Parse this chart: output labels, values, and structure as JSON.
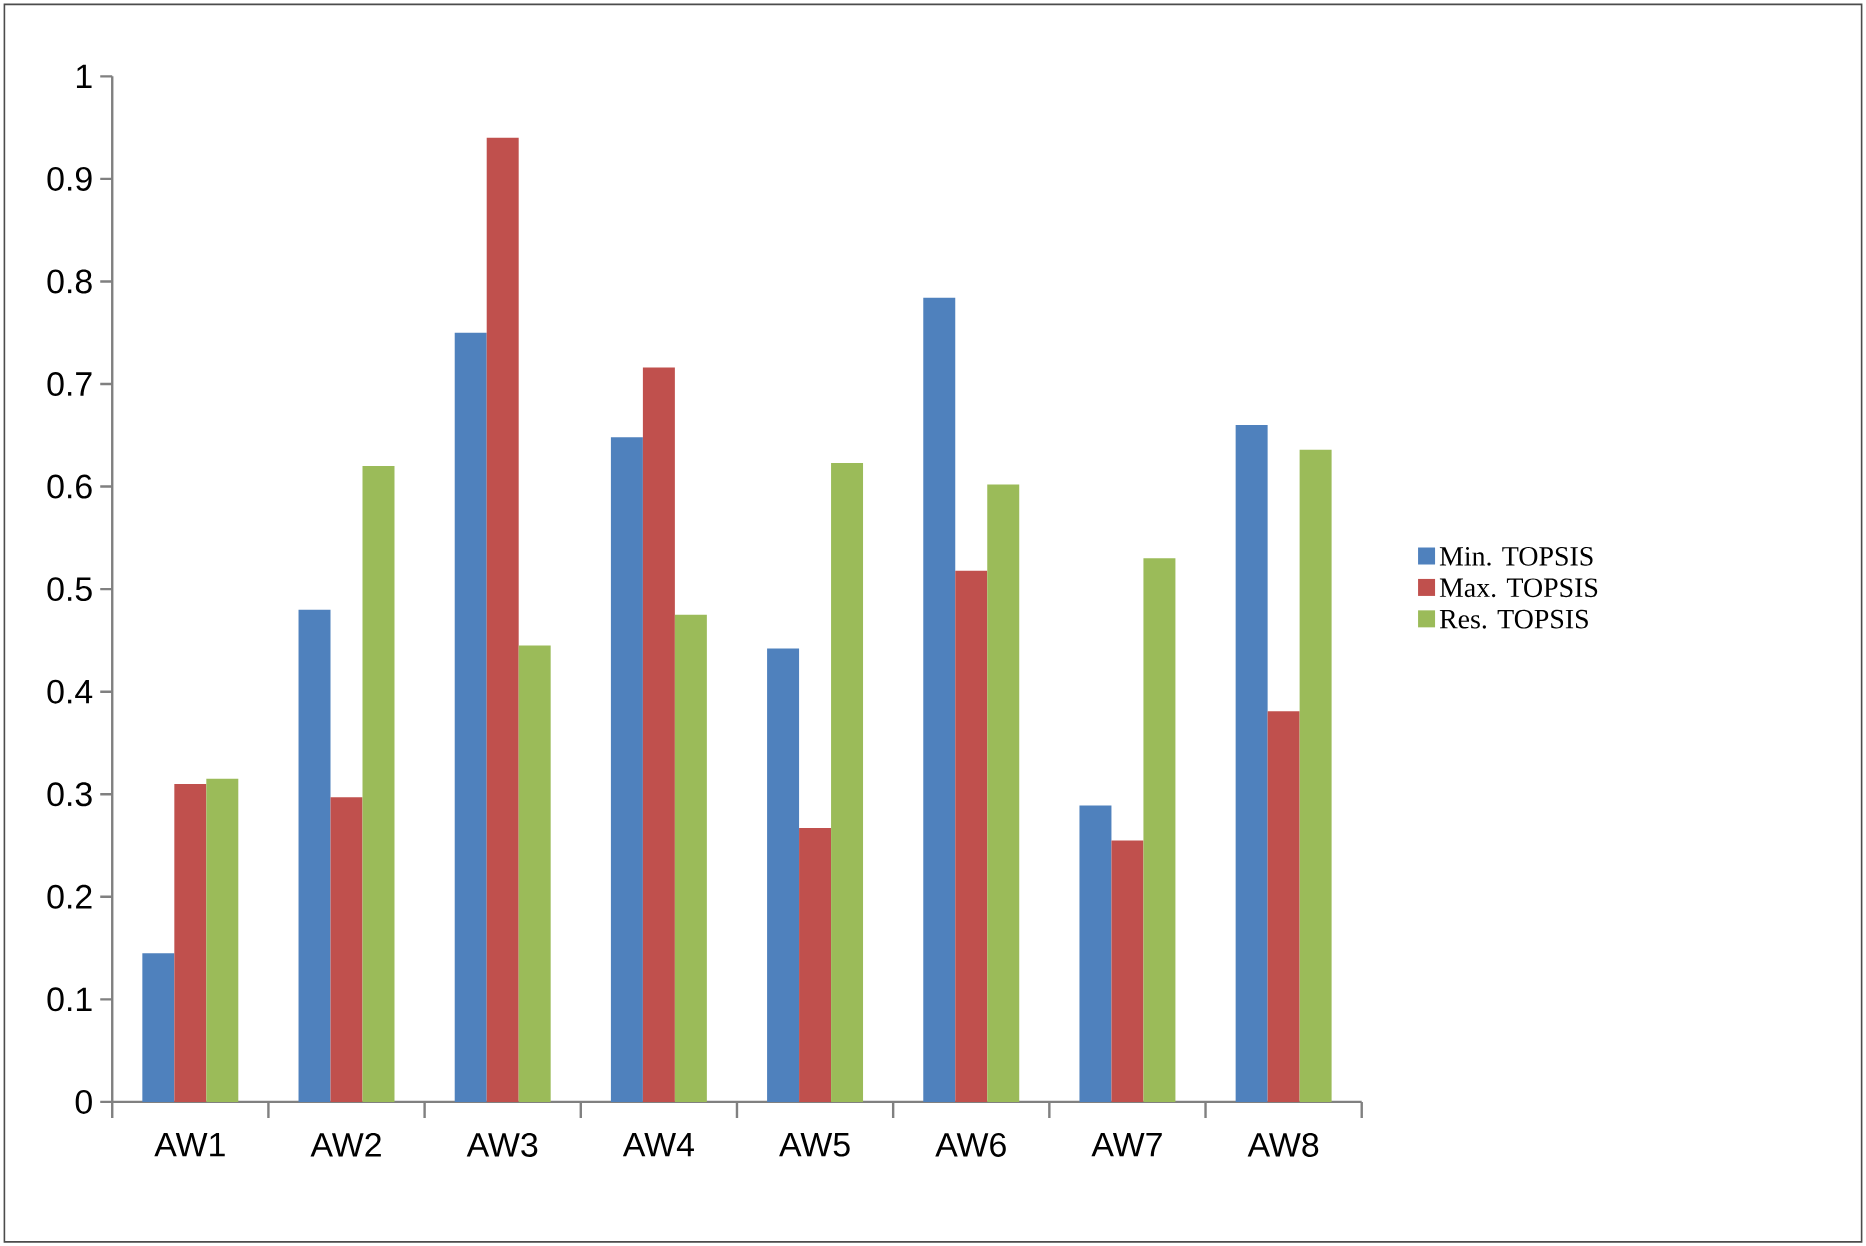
{
  "chart_data": {
    "type": "bar",
    "categories": [
      "AW1",
      "AW2",
      "AW3",
      "AW4",
      "AW5",
      "AW6",
      "AW7",
      "AW8"
    ],
    "series": [
      {
        "name": "Min. TOPSIS",
        "color": "#4f81bd",
        "values": [
          0.145,
          0.48,
          0.75,
          0.648,
          0.442,
          0.784,
          0.289,
          0.66
        ]
      },
      {
        "name": "Max. TOPSIS",
        "color": "#c0504d",
        "values": [
          0.31,
          0.297,
          0.94,
          0.716,
          0.267,
          0.518,
          0.255,
          0.381
        ]
      },
      {
        "name": "Res. TOPSIS",
        "color": "#9bbb59",
        "values": [
          0.315,
          0.62,
          0.445,
          0.475,
          0.623,
          0.602,
          0.53,
          0.636
        ]
      }
    ],
    "ylim": [
      0,
      1
    ],
    "yticks": [
      0,
      0.1,
      0.2,
      0.3,
      0.4,
      0.5,
      0.6,
      0.7,
      0.8,
      0.9,
      1
    ],
    "grid": false,
    "legend": "right"
  }
}
